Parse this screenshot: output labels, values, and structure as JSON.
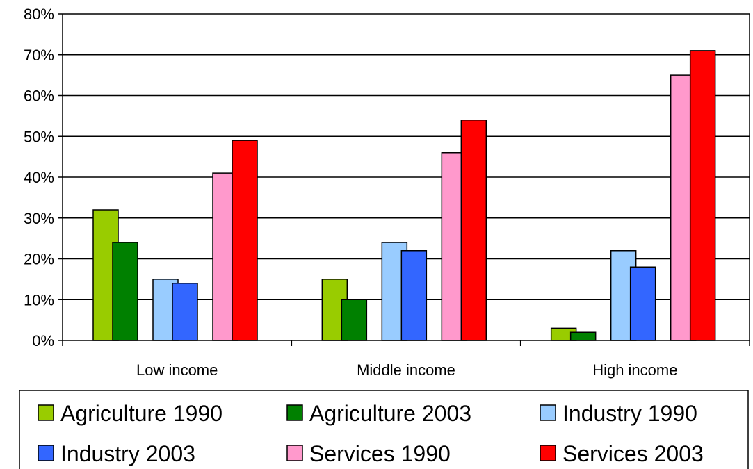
{
  "chart_data": {
    "type": "bar",
    "categories": [
      "Low income",
      "Middle income",
      "High income"
    ],
    "series": [
      {
        "name": "Agriculture 1990",
        "color": "#99cc00",
        "values": [
          32,
          15,
          3
        ]
      },
      {
        "name": "Agriculture 2003",
        "color": "#008000",
        "values": [
          24,
          10,
          2
        ]
      },
      {
        "name": "Industry 1990",
        "color": "#99ccff",
        "values": [
          15,
          24,
          22
        ]
      },
      {
        "name": "Industry 2003",
        "color": "#3366ff",
        "values": [
          14,
          22,
          18
        ]
      },
      {
        "name": "Services 1990",
        "color": "#ff99cc",
        "values": [
          41,
          46,
          65
        ]
      },
      {
        "name": "Services 2003",
        "color": "#ff0000",
        "values": [
          49,
          54,
          71
        ]
      }
    ],
    "ylim": [
      0,
      80
    ],
    "yticks": [
      "0%",
      "10%",
      "20%",
      "30%",
      "40%",
      "50%",
      "60%",
      "70%",
      "80%"
    ],
    "grid": true,
    "legend_position": "bottom",
    "title": "",
    "xlabel": "",
    "ylabel": ""
  }
}
